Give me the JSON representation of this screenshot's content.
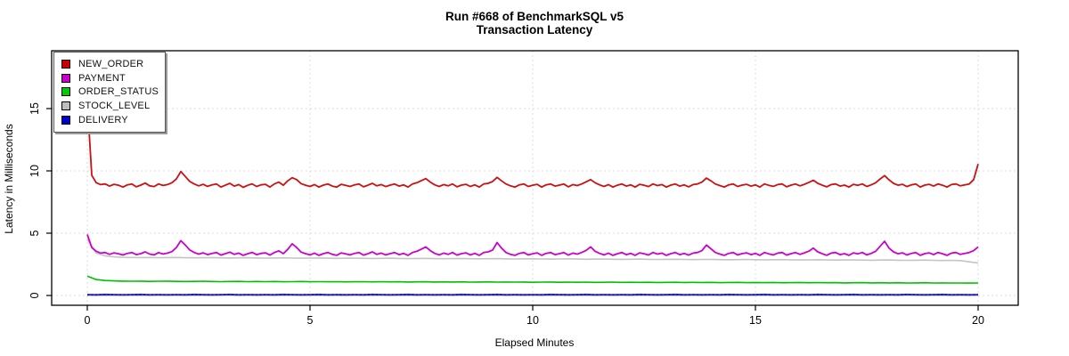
{
  "title": {
    "line1": "Run #668 of BenchmarkSQL v5",
    "line2": "Transaction Latency"
  },
  "axes": {
    "x": {
      "title": "Elapsed Minutes",
      "ticks": [
        0,
        5,
        10,
        15,
        20
      ]
    },
    "y": {
      "title": "Latency in Milliseconds",
      "ticks": [
        0,
        5,
        10,
        15
      ]
    }
  },
  "legend": {
    "items": [
      {
        "label": "NEW_ORDER",
        "color": "#cc0000"
      },
      {
        "label": "PAYMENT",
        "color": "#cc00cc"
      },
      {
        "label": "ORDER_STATUS",
        "color": "#00cc00"
      },
      {
        "label": "STOCK_LEVEL",
        "color": "#bebebe"
      },
      {
        "label": "DELIVERY",
        "color": "#0000cc"
      }
    ]
  },
  "chart_data": {
    "type": "line",
    "title": "Run #668 of BenchmarkSQL v5 — Transaction Latency",
    "xlabel": "Elapsed Minutes",
    "ylabel": "Latency in Milliseconds",
    "xlim": [
      0,
      20
    ],
    "ylim": [
      0,
      15
    ],
    "grid": "dotted",
    "legend_position": "top-left",
    "series": [
      {
        "name": "STOCK_LEVEL",
        "color": "#c4c4c4",
        "width": 1.6,
        "x0": 0,
        "dx": 0.2,
        "values": [
          4.5,
          3.4,
          3.18,
          3.1,
          3.06,
          3.05,
          3.04,
          3.05,
          3.03,
          3.04,
          3.05,
          3.03,
          3.02,
          3.03,
          3.04,
          3.02,
          3.01,
          3.02,
          3.03,
          3.01,
          3.0,
          3.01,
          3.02,
          3.0,
          2.99,
          3.0,
          3.01,
          2.99,
          2.98,
          2.99,
          3.0,
          2.98,
          2.97,
          2.98,
          2.99,
          2.97,
          2.96,
          2.97,
          2.98,
          2.96,
          2.95,
          2.96,
          2.97,
          2.95,
          2.94,
          2.95,
          2.96,
          2.94,
          2.93,
          2.94,
          2.95,
          2.93,
          2.92,
          2.93,
          2.94,
          2.92,
          2.91,
          2.92,
          2.93,
          2.91,
          2.9,
          2.91,
          2.92,
          2.9,
          2.89,
          2.9,
          2.91,
          2.89,
          2.88,
          2.89,
          2.9,
          2.88,
          2.87,
          2.88,
          2.89,
          2.87,
          2.86,
          2.87,
          2.88,
          2.86,
          2.85,
          2.86,
          2.87,
          2.85,
          2.84,
          2.85,
          2.86,
          2.84,
          2.83,
          2.84,
          2.85,
          2.83,
          2.82,
          2.83,
          2.84,
          2.82,
          2.81,
          2.82,
          2.8,
          2.7,
          2.6
        ]
      },
      {
        "name": "ORDER_STATUS",
        "color": "#00bf00",
        "width": 1.6,
        "x0": 0,
        "dx": 0.2,
        "values": [
          1.55,
          1.28,
          1.2,
          1.17,
          1.15,
          1.14,
          1.15,
          1.13,
          1.14,
          1.15,
          1.13,
          1.12,
          1.13,
          1.14,
          1.12,
          1.11,
          1.12,
          1.13,
          1.11,
          1.12,
          1.11,
          1.12,
          1.1,
          1.11,
          1.12,
          1.1,
          1.11,
          1.1,
          1.11,
          1.09,
          1.1,
          1.11,
          1.09,
          1.1,
          1.09,
          1.1,
          1.08,
          1.09,
          1.1,
          1.08,
          1.09,
          1.08,
          1.09,
          1.07,
          1.08,
          1.09,
          1.07,
          1.08,
          1.07,
          1.08,
          1.06,
          1.07,
          1.08,
          1.06,
          1.07,
          1.06,
          1.07,
          1.05,
          1.06,
          1.07,
          1.05,
          1.06,
          1.05,
          1.06,
          1.04,
          1.05,
          1.06,
          1.04,
          1.05,
          1.04,
          1.05,
          1.03,
          1.04,
          1.05,
          1.03,
          1.04,
          1.03,
          1.04,
          1.02,
          1.03,
          1.04,
          1.02,
          1.03,
          1.02,
          1.03,
          1.01,
          1.02,
          1.03,
          1.01,
          1.02,
          1.01,
          1.02,
          1.0,
          1.01,
          1.02,
          1.0,
          1.01,
          1.0,
          1.0,
          0.99,
          1.0
        ]
      },
      {
        "name": "DELIVERY",
        "color": "#3333cc",
        "width": 2.2,
        "x0": 0,
        "dx": 0.2,
        "overlay_color": "#10106e",
        "overlay_dash": "2,2.5",
        "values": [
          0.06,
          0.05,
          0.07,
          0.06,
          0.05,
          0.06,
          0.07,
          0.05,
          0.06,
          0.05,
          0.06,
          0.05,
          0.07,
          0.06,
          0.05,
          0.06,
          0.07,
          0.05,
          0.06,
          0.05,
          0.06,
          0.05,
          0.07,
          0.06,
          0.05,
          0.06,
          0.07,
          0.05,
          0.06,
          0.05,
          0.06,
          0.05,
          0.07,
          0.06,
          0.05,
          0.06,
          0.07,
          0.05,
          0.06,
          0.05,
          0.06,
          0.05,
          0.07,
          0.06,
          0.05,
          0.06,
          0.07,
          0.05,
          0.06,
          0.05,
          0.06,
          0.05,
          0.07,
          0.06,
          0.05,
          0.06,
          0.07,
          0.05,
          0.06,
          0.05,
          0.06,
          0.05,
          0.07,
          0.06,
          0.05,
          0.06,
          0.07,
          0.05,
          0.06,
          0.05,
          0.06,
          0.05,
          0.07,
          0.06,
          0.05,
          0.06,
          0.07,
          0.05,
          0.06,
          0.05,
          0.06,
          0.05,
          0.07,
          0.06,
          0.05,
          0.06,
          0.07,
          0.05,
          0.06,
          0.05,
          0.06,
          0.05,
          0.07,
          0.06,
          0.05,
          0.06,
          0.07,
          0.05,
          0.06,
          0.05,
          0.06
        ]
      },
      {
        "name": "PAYMENT",
        "color": "#cc00cc",
        "width": 1.8,
        "x0": 0,
        "dx": 0.1,
        "values": [
          4.9,
          3.85,
          3.55,
          3.4,
          3.45,
          3.3,
          3.42,
          3.35,
          3.25,
          3.38,
          3.45,
          3.28,
          3.36,
          3.5,
          3.32,
          3.26,
          3.44,
          3.33,
          3.4,
          3.52,
          3.85,
          4.4,
          4.05,
          3.65,
          3.45,
          3.32,
          3.42,
          3.28,
          3.38,
          3.45,
          3.24,
          3.36,
          3.48,
          3.3,
          3.4,
          3.22,
          3.35,
          3.46,
          3.28,
          3.38,
          3.42,
          3.24,
          3.45,
          3.58,
          3.36,
          3.7,
          4.15,
          3.85,
          3.48,
          3.36,
          3.26,
          3.4,
          3.22,
          3.36,
          3.45,
          3.3,
          3.22,
          3.42,
          3.34,
          3.26,
          3.38,
          3.45,
          3.24,
          3.35,
          3.5,
          3.3,
          3.4,
          3.26,
          3.36,
          3.44,
          3.28,
          3.38,
          3.22,
          3.45,
          3.55,
          3.72,
          3.9,
          3.6,
          3.38,
          3.26,
          3.4,
          3.3,
          3.45,
          3.24,
          3.36,
          3.42,
          3.26,
          3.38,
          3.22,
          3.45,
          3.5,
          3.65,
          4.25,
          3.8,
          3.45,
          3.3,
          3.22,
          3.38,
          3.45,
          3.26,
          3.35,
          3.42,
          3.22,
          3.38,
          3.45,
          3.28,
          3.36,
          3.44,
          3.24,
          3.4,
          3.32,
          3.45,
          3.62,
          3.9,
          3.55,
          3.38,
          3.26,
          3.4,
          3.22,
          3.35,
          3.45,
          3.28,
          3.38,
          3.22,
          3.42,
          3.35,
          3.25,
          3.45,
          3.32,
          3.4,
          3.22,
          3.36,
          3.45,
          3.28,
          3.38,
          3.24,
          3.4,
          3.45,
          3.6,
          4.05,
          3.75,
          3.45,
          3.32,
          3.22,
          3.38,
          3.45,
          3.26,
          3.36,
          3.42,
          3.28,
          3.38,
          3.22,
          3.45,
          3.34,
          3.26,
          3.4,
          3.45,
          3.24,
          3.36,
          3.44,
          3.3,
          3.42,
          3.56,
          3.8,
          3.5,
          3.35,
          3.23,
          3.4,
          3.45,
          3.28,
          3.36,
          3.22,
          3.42,
          3.34,
          3.45,
          3.26,
          3.38,
          3.55,
          3.95,
          4.35,
          3.8,
          3.5,
          3.35,
          3.42,
          3.25,
          3.38,
          3.45,
          3.22,
          3.36,
          3.42,
          3.28,
          3.45,
          3.35,
          3.22,
          3.4,
          3.45,
          3.3,
          3.38,
          3.45,
          3.6,
          3.9
        ]
      },
      {
        "name": "NEW_ORDER",
        "color": "#cc1111",
        "width": 1.8,
        "x0": 0,
        "dx": 0.1,
        "values": [
          15.6,
          9.65,
          9.05,
          8.9,
          8.95,
          8.78,
          8.92,
          8.85,
          8.7,
          8.88,
          8.95,
          8.72,
          8.86,
          9.02,
          8.8,
          8.74,
          8.95,
          8.83,
          8.9,
          9.05,
          9.35,
          9.95,
          9.55,
          9.15,
          8.95,
          8.8,
          8.92,
          8.76,
          8.88,
          8.95,
          8.7,
          8.85,
          9.0,
          8.78,
          8.9,
          8.68,
          8.84,
          8.96,
          8.75,
          8.88,
          8.92,
          8.7,
          8.95,
          9.1,
          8.85,
          9.2,
          9.45,
          9.3,
          8.98,
          8.85,
          8.75,
          8.9,
          8.7,
          8.86,
          8.95,
          8.78,
          8.7,
          8.92,
          8.84,
          8.75,
          8.88,
          8.95,
          8.72,
          8.85,
          9.0,
          8.8,
          8.9,
          8.74,
          8.86,
          8.94,
          8.78,
          8.88,
          8.7,
          8.95,
          9.05,
          9.22,
          9.38,
          9.1,
          8.88,
          8.75,
          8.9,
          8.8,
          8.95,
          8.72,
          8.86,
          8.92,
          8.75,
          8.88,
          8.7,
          8.95,
          9.0,
          9.15,
          9.48,
          9.2,
          8.95,
          8.8,
          8.7,
          8.88,
          8.95,
          8.75,
          8.85,
          8.92,
          8.7,
          8.88,
          8.95,
          8.78,
          8.86,
          8.94,
          8.72,
          8.9,
          8.82,
          8.95,
          9.12,
          9.3,
          9.05,
          8.88,
          8.75,
          8.9,
          8.7,
          8.85,
          8.95,
          8.78,
          8.88,
          8.7,
          8.92,
          8.85,
          8.74,
          8.95,
          8.82,
          8.9,
          8.7,
          8.86,
          8.95,
          8.78,
          8.88,
          8.72,
          8.9,
          8.95,
          9.1,
          9.42,
          9.2,
          8.95,
          8.82,
          8.7,
          8.88,
          8.95,
          8.75,
          8.86,
          8.92,
          8.78,
          8.88,
          8.7,
          8.95,
          8.84,
          8.76,
          8.9,
          8.95,
          8.72,
          8.86,
          8.94,
          8.8,
          8.92,
          9.08,
          9.25,
          9.0,
          8.85,
          8.72,
          8.9,
          8.95,
          8.78,
          8.86,
          8.7,
          8.92,
          8.84,
          8.95,
          8.75,
          8.88,
          9.05,
          9.35,
          9.62,
          9.28,
          9.0,
          8.85,
          8.92,
          8.74,
          8.88,
          8.95,
          8.7,
          8.86,
          8.92,
          8.78,
          8.95,
          8.85,
          8.7,
          8.9,
          8.95,
          8.8,
          8.88,
          8.95,
          9.3,
          10.55
        ]
      }
    ]
  }
}
